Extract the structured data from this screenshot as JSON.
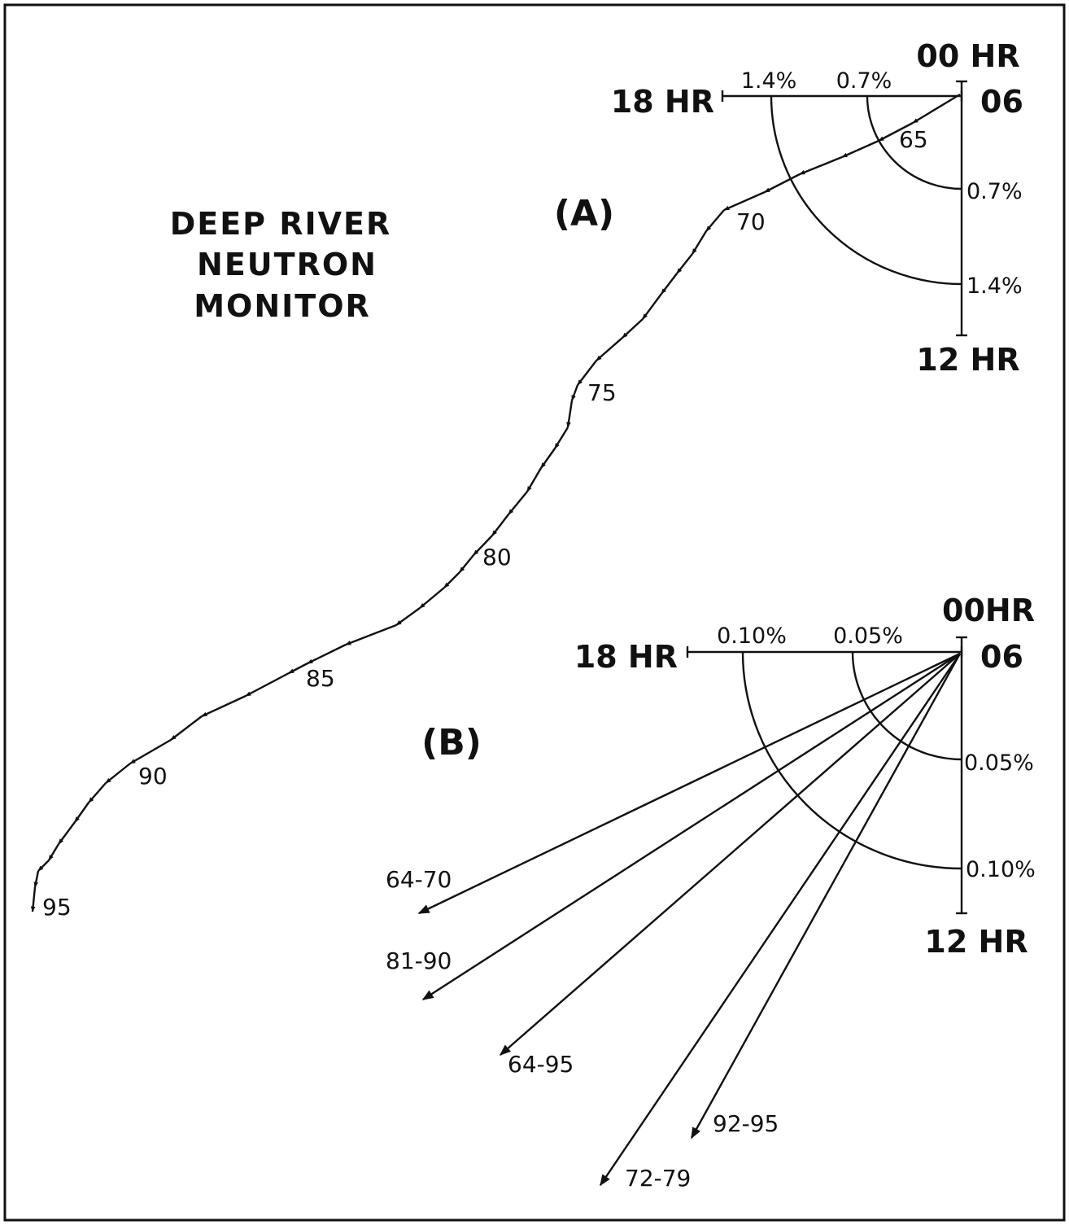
{
  "title": [
    "DEEP RIVER",
    "NEUTRON",
    "MONITOR"
  ],
  "panel_a": {
    "label": "(A)",
    "axes": {
      "top": "00 HR",
      "left": "18 HR",
      "right": "06",
      "bottom": "12 HR"
    },
    "radial_labels": {
      "inner_h": "0.7%",
      "outer_h": "1.4%",
      "inner_v": "0.7%",
      "outer_v": "1.4%"
    },
    "year_labels": [
      {
        "text": "65",
        "index": 2
      },
      {
        "text": "70",
        "index": 7
      },
      {
        "text": "75",
        "index": 12
      },
      {
        "text": "80",
        "index": 17
      },
      {
        "text": "85",
        "index": 22
      },
      {
        "text": "90",
        "index": 27
      },
      {
        "text": "95",
        "index": 32
      }
    ]
  },
  "panel_b": {
    "label": "(B)",
    "axes": {
      "top": "00HR",
      "left": "18 HR",
      "right": "06",
      "bottom": "12 HR"
    },
    "radial_labels": {
      "inner_h": "0.05%",
      "outer_h": "0.10%",
      "inner_v": "0.05%",
      "outer_v": "0.10%"
    },
    "vectors": [
      {
        "label": "64-70"
      },
      {
        "label": "81-90"
      },
      {
        "label": "64-95"
      },
      {
        "label": "72-79"
      },
      {
        "label": "92-95"
      }
    ]
  }
}
